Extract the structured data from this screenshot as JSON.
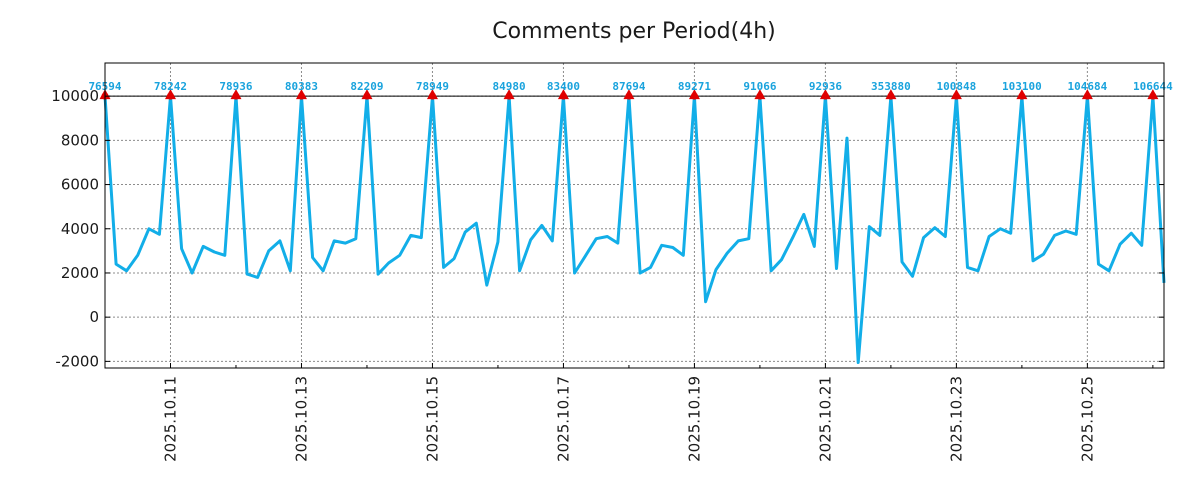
{
  "chart_data": {
    "type": "line",
    "title": "Comments per Period(4h)",
    "xlabel": "",
    "ylabel": "",
    "ylim": [
      -2300,
      11500
    ],
    "y_ticks": [
      -2000,
      0,
      2000,
      4000,
      6000,
      8000,
      10000
    ],
    "y_tick_labels": [
      "-2000",
      "0",
      "2000",
      "4000",
      "6000",
      "8000",
      "10000"
    ],
    "x_tick_labels": [
      "2025.10.11",
      "2025.10.13",
      "2025.10.15",
      "2025.10.17",
      "2025.10.19",
      "2025.10.21",
      "2025.10.23",
      "2025.10.25"
    ],
    "x_tick_days": [
      1,
      3,
      5,
      7,
      9,
      11,
      13,
      15
    ],
    "x_range_days": [
      0,
      16.17
    ],
    "reference_line": 10000,
    "grid": true,
    "colors": {
      "line": "#12aee8",
      "peak_marker": "#e00000",
      "peak_label": "#1aa3dd",
      "grid": "#8c8c8c"
    },
    "series": [
      {
        "name": "Comments",
        "x": [
          0.0,
          0.17,
          0.33,
          0.5,
          0.67,
          0.83,
          1.0,
          1.17,
          1.33,
          1.5,
          1.67,
          1.83,
          2.0,
          2.17,
          2.33,
          2.5,
          2.67,
          2.83,
          3.0,
          3.17,
          3.33,
          3.5,
          3.67,
          3.83,
          4.0,
          4.17,
          4.33,
          4.5,
          4.67,
          4.83,
          5.0,
          5.17,
          5.33,
          5.5,
          5.67,
          5.83,
          6.0,
          6.17,
          6.33,
          6.5,
          6.67,
          6.83,
          7.0,
          7.17,
          7.33,
          7.5,
          7.67,
          7.83,
          8.0,
          8.17,
          8.33,
          8.5,
          8.67,
          8.83,
          9.0,
          9.17,
          9.33,
          9.5,
          9.67,
          9.83,
          10.0,
          10.17,
          10.33,
          10.5,
          10.67,
          10.83,
          11.0,
          11.17,
          11.33,
          11.5,
          11.67,
          11.83,
          12.0,
          12.17,
          12.33,
          12.5,
          12.67,
          12.83,
          13.0,
          13.17,
          13.33,
          13.5,
          13.67,
          13.83,
          14.0,
          14.17,
          14.33,
          14.5,
          14.67,
          14.83,
          15.0,
          15.17,
          15.33,
          15.5,
          15.67,
          15.83,
          16.0,
          16.17
        ],
        "y": [
          10000,
          2400,
          2100,
          2800,
          4000,
          3750,
          10000,
          3100,
          2000,
          3200,
          2950,
          2800,
          10000,
          1950,
          1800,
          3000,
          3450,
          2100,
          10000,
          2700,
          2100,
          3450,
          3350,
          3550,
          10000,
          1950,
          2450,
          2800,
          3700,
          3600,
          10000,
          2250,
          2650,
          3850,
          4250,
          1450,
          3400,
          10000,
          2100,
          3500,
          4150,
          3450,
          10000,
          2000,
          2750,
          3550,
          3650,
          3350,
          10000,
          2000,
          2250,
          3250,
          3150,
          2800,
          10000,
          700,
          2150,
          2900,
          3450,
          3550,
          10000,
          2100,
          2600,
          3600,
          4650,
          3200,
          10000,
          2200,
          8100,
          -2050,
          4100,
          3700,
          10000,
          2500,
          1850,
          3600,
          4050,
          3650,
          10000,
          2250,
          2100,
          3650,
          4000,
          3800,
          10000,
          2550,
          2850,
          3700,
          3900,
          3750,
          10000,
          2400,
          2100,
          3300,
          3800,
          3250,
          10000,
          1550
        ]
      }
    ],
    "peaks": [
      {
        "x": 0.0,
        "label": "76594"
      },
      {
        "x": 1.0,
        "label": "78242"
      },
      {
        "x": 2.0,
        "label": "78936"
      },
      {
        "x": 3.0,
        "label": "80383"
      },
      {
        "x": 4.0,
        "label": "82209"
      },
      {
        "x": 5.0,
        "label": "78949"
      },
      {
        "x": 6.17,
        "label": "84980"
      },
      {
        "x": 7.0,
        "label": "83400"
      },
      {
        "x": 8.0,
        "label": "87694"
      },
      {
        "x": 9.0,
        "label": "89271"
      },
      {
        "x": 10.0,
        "label": "91066"
      },
      {
        "x": 11.0,
        "label": "92936"
      },
      {
        "x": 12.0,
        "label": "353880"
      },
      {
        "x": 13.0,
        "label": "100848"
      },
      {
        "x": 14.0,
        "label": "103100"
      },
      {
        "x": 15.0,
        "label": "104684"
      },
      {
        "x": 16.0,
        "label": "106644"
      }
    ]
  }
}
